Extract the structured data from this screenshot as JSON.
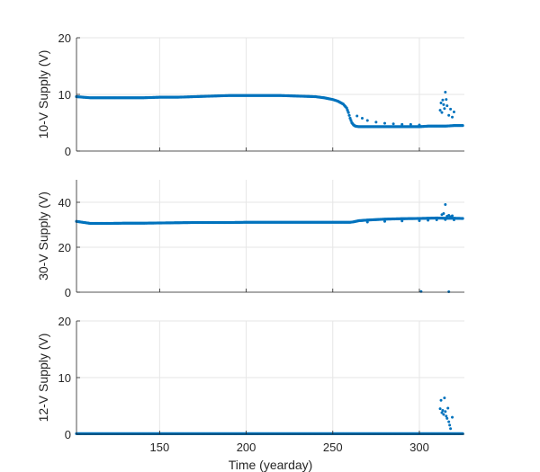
{
  "chart_data": [
    {
      "type": "scatter",
      "ylabel": "10-V Supply (V)",
      "xlabel": "",
      "xlim": [
        102,
        326
      ],
      "ylim": [
        0,
        20
      ],
      "yticks": [
        0,
        10,
        20
      ],
      "xticks": [
        150,
        200,
        250,
        300
      ],
      "show_xtick_labels": false,
      "grid": true,
      "color": "#0072BD",
      "series": [
        {
          "x": [
            102,
            110,
            120,
            130,
            140,
            150,
            160,
            170,
            180,
            190,
            200,
            210,
            220,
            230,
            240,
            245,
            250,
            253,
            256,
            258,
            259,
            260,
            261,
            262,
            263,
            265,
            270,
            280,
            290,
            300,
            305,
            310,
            315,
            320,
            325
          ],
          "y": [
            9.6,
            9.4,
            9.4,
            9.4,
            9.4,
            9.5,
            9.5,
            9.6,
            9.7,
            9.8,
            9.8,
            9.8,
            9.8,
            9.7,
            9.6,
            9.4,
            9.1,
            8.8,
            8.3,
            7.6,
            6.8,
            5.8,
            5.0,
            4.6,
            4.4,
            4.3,
            4.3,
            4.3,
            4.3,
            4.3,
            4.4,
            4.4,
            4.4,
            4.5,
            4.5
          ]
        },
        {
          "x": [
            264,
            267,
            270,
            275,
            280,
            285,
            290,
            295,
            300
          ],
          "y": [
            6.2,
            5.8,
            5.4,
            5.1,
            4.9,
            4.8,
            4.7,
            4.7,
            4.6
          ]
        },
        {
          "x": [
            312,
            312.5,
            313,
            313.5,
            314,
            314.5,
            315,
            315.5,
            316,
            317,
            318,
            319,
            320
          ],
          "y": [
            7.2,
            8.5,
            6.8,
            9.0,
            8.2,
            7.5,
            10.4,
            9.1,
            8.0,
            6.3,
            7.4,
            6.0,
            6.9
          ]
        }
      ]
    },
    {
      "type": "scatter",
      "ylabel": "30-V Supply (V)",
      "xlabel": "",
      "xlim": [
        102,
        326
      ],
      "ylim": [
        0,
        50
      ],
      "yticks": [
        0,
        20,
        40
      ],
      "xticks": [
        150,
        200,
        250,
        300
      ],
      "show_xtick_labels": false,
      "grid": true,
      "color": "#0072BD",
      "series": [
        {
          "x": [
            102,
            110,
            120,
            130,
            140,
            150,
            160,
            170,
            180,
            190,
            200,
            210,
            220,
            230,
            240,
            250,
            255,
            260,
            262,
            265,
            270,
            280,
            290,
            300,
            305,
            310,
            315,
            320,
            325
          ],
          "y": [
            31.5,
            30.6,
            30.6,
            30.7,
            30.7,
            30.8,
            30.9,
            31.0,
            31.0,
            31.0,
            31.1,
            31.1,
            31.1,
            31.1,
            31.1,
            31.1,
            31.1,
            31.1,
            31.3,
            31.8,
            32.1,
            32.5,
            32.7,
            32.8,
            32.9,
            33.0,
            32.9,
            32.9,
            32.8
          ]
        },
        {
          "x": [
            270,
            280,
            290,
            300,
            305,
            310,
            315,
            320
          ],
          "y": [
            31.2,
            31.5,
            31.7,
            31.8,
            32.0,
            32.2,
            32.3,
            32.2
          ]
        },
        {
          "x": [
            313,
            314,
            315,
            316,
            317,
            318,
            319,
            301,
            317
          ],
          "y": [
            34.5,
            35.0,
            39.0,
            33.8,
            34.2,
            33.6,
            34.0,
            0.3,
            0.2
          ]
        }
      ]
    },
    {
      "type": "scatter",
      "ylabel": "12-V Supply (V)",
      "xlabel": "Time (yearday)",
      "xlim": [
        102,
        326
      ],
      "ylim": [
        0,
        20
      ],
      "yticks": [
        0,
        10,
        20
      ],
      "xticks": [
        150,
        200,
        250,
        300
      ],
      "show_xtick_labels": true,
      "grid": true,
      "color": "#0072BD",
      "series": [
        {
          "x": [
            102,
            110,
            120,
            130,
            140,
            150,
            160,
            170,
            180,
            190,
            200,
            210,
            220,
            230,
            240,
            250,
            260,
            270,
            280,
            290,
            300,
            305,
            310,
            315,
            320,
            325
          ],
          "y": [
            0.1,
            0.1,
            0.1,
            0.1,
            0.1,
            0.1,
            0.1,
            0.1,
            0.1,
            0.1,
            0.1,
            0.1,
            0.1,
            0.1,
            0.1,
            0.1,
            0.1,
            0.1,
            0.1,
            0.1,
            0.1,
            0.1,
            0.1,
            0.1,
            0.1,
            0.1
          ]
        },
        {
          "x": [
            312,
            312.5,
            313,
            313.5,
            314,
            314.5,
            315,
            315.5,
            316,
            316.5,
            317,
            317.5,
            318,
            319
          ],
          "y": [
            4.5,
            6.0,
            3.8,
            4.2,
            3.5,
            6.4,
            4.0,
            3.2,
            2.8,
            4.6,
            2.2,
            1.6,
            1.0,
            3.0
          ]
        }
      ]
    }
  ]
}
